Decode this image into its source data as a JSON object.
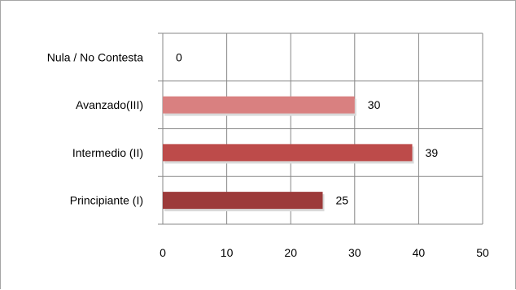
{
  "chart_data": {
    "type": "bar",
    "orientation": "horizontal",
    "categories": [
      "Nula / No Contesta",
      "Avanzado(III)",
      "Intermedio (II)",
      "Principiante (I)"
    ],
    "values": [
      0,
      30,
      39,
      25
    ],
    "value_labels": [
      "0",
      "30",
      "39",
      "25"
    ],
    "bar_colors": [
      "#d98080",
      "#d98080",
      "#bd4b4a",
      "#9c3a3a"
    ],
    "xlim": [
      0,
      50
    ],
    "x_ticks": [
      0,
      10,
      20,
      30,
      40,
      50
    ],
    "x_tick_labels": [
      "0",
      "10",
      "20",
      "30",
      "40",
      "50"
    ],
    "title": "",
    "xlabel": "",
    "ylabel": "",
    "grid": true,
    "legend": "none"
  }
}
